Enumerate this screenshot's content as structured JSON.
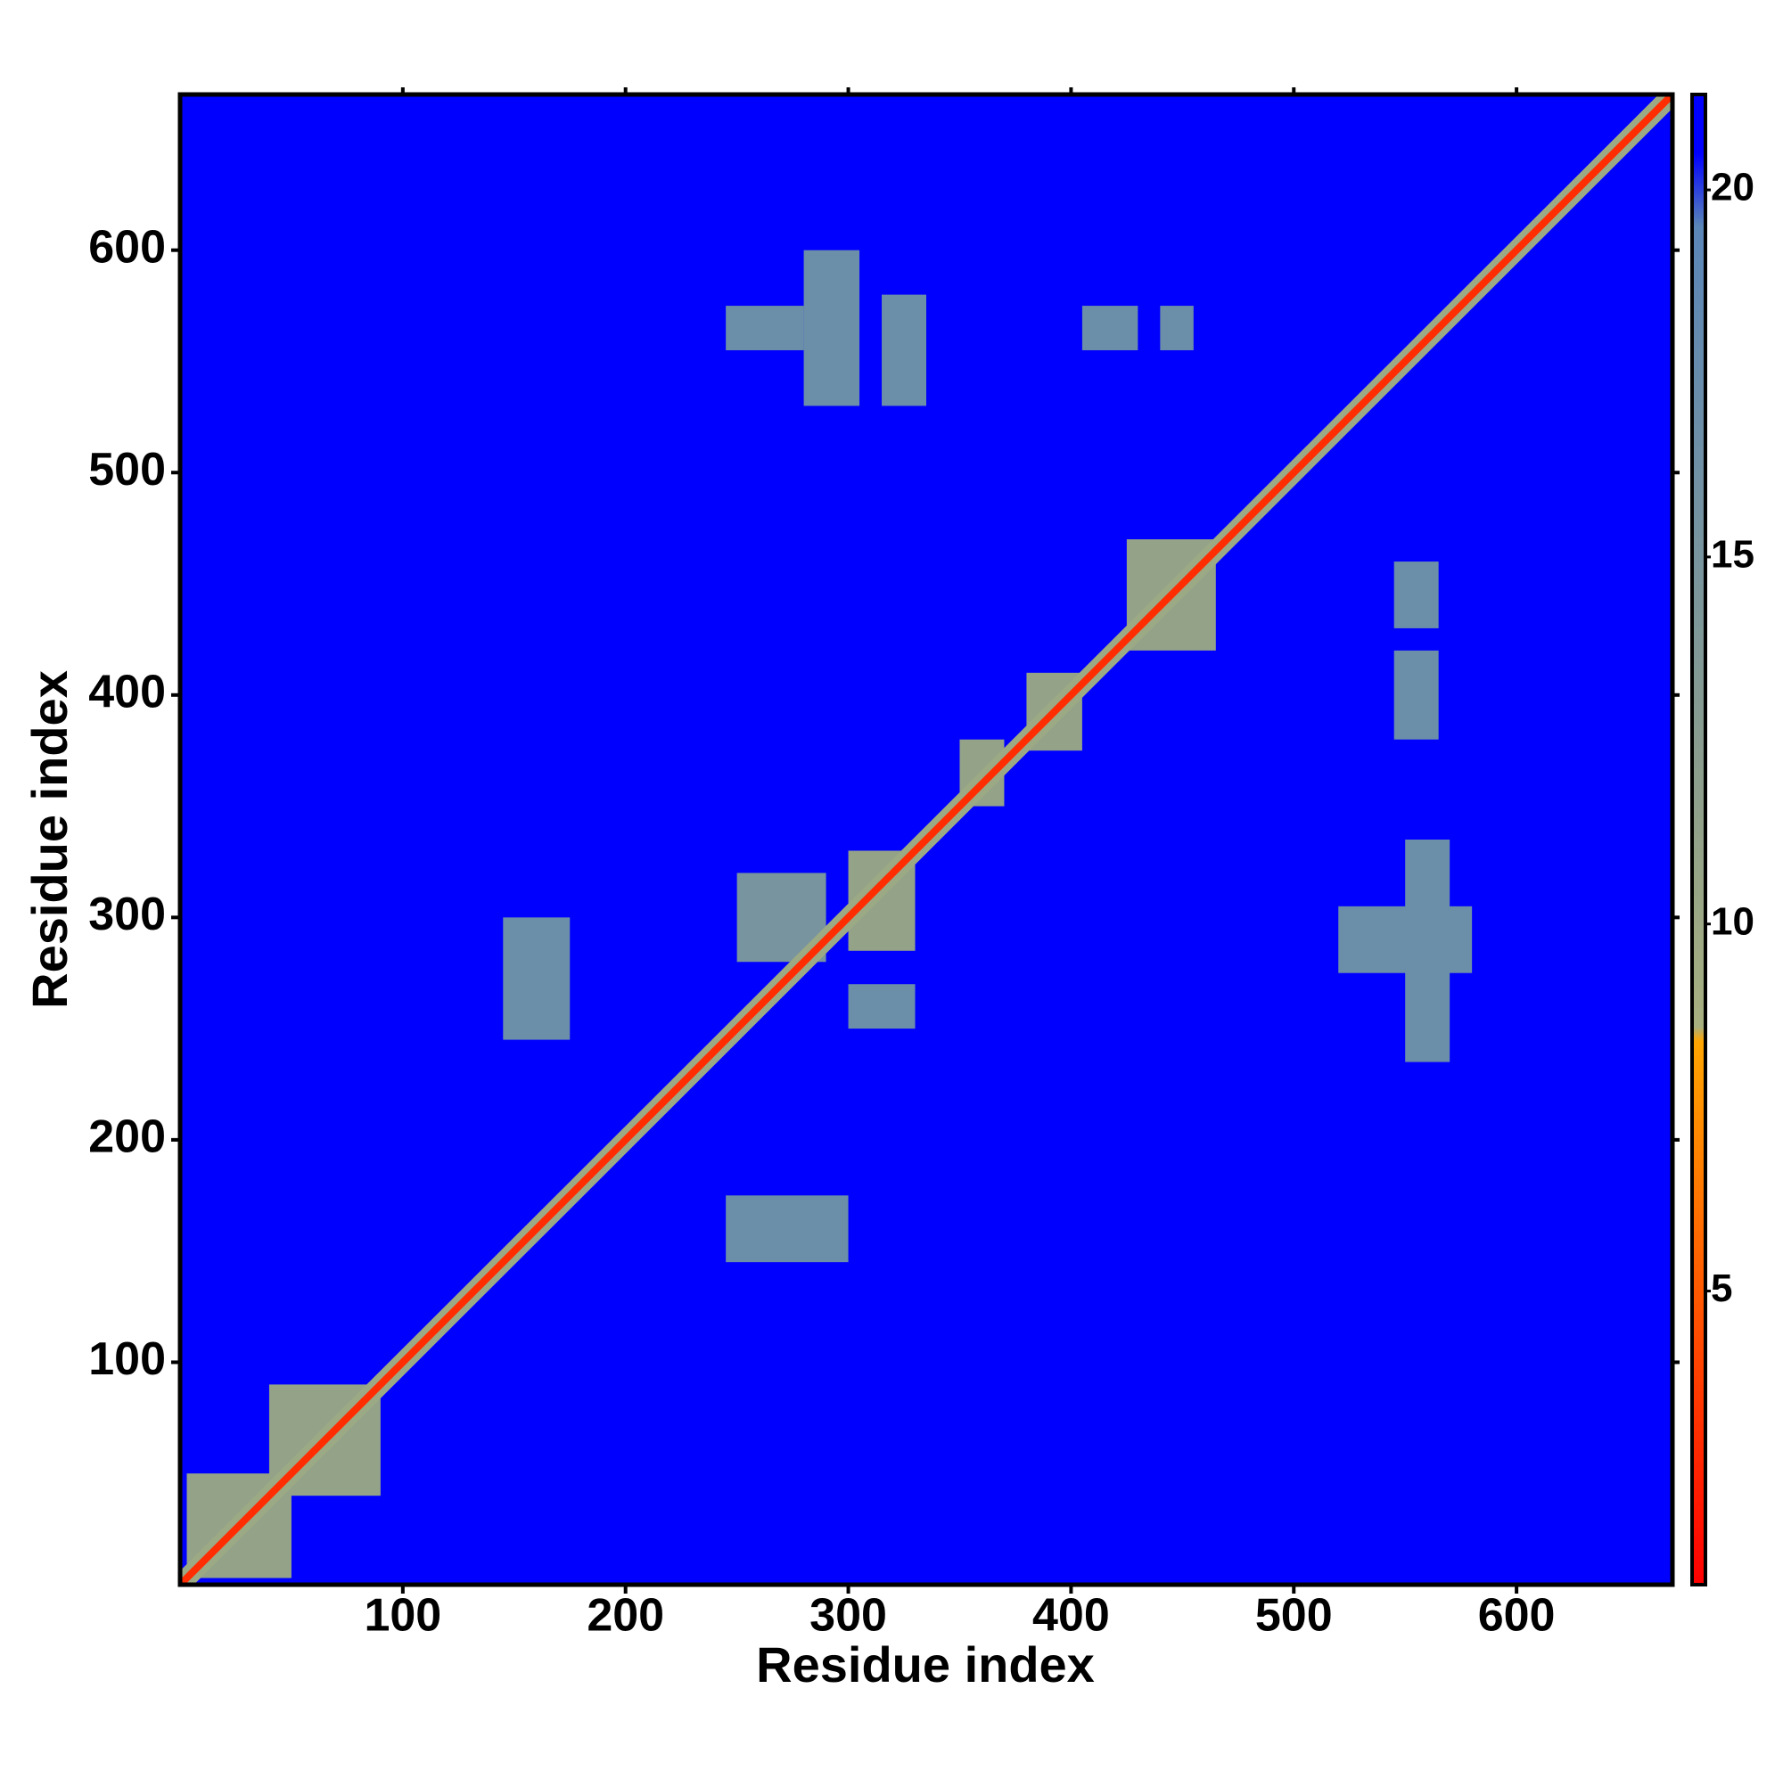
{
  "chart_data": {
    "type": "heatmap",
    "x_label": "Residue index",
    "y_label": "Residue index",
    "xlim": [
      0,
      670
    ],
    "ylim": [
      0,
      670
    ],
    "xticks": [
      100,
      200,
      300,
      400,
      500,
      600
    ],
    "yticks": [
      100,
      200,
      300,
      400,
      500,
      600
    ],
    "clim": [
      1,
      21.3
    ],
    "cticks": [
      5,
      10,
      15,
      20
    ],
    "colorscale": [
      [
        1,
        "#ff0000"
      ],
      [
        8.4,
        "#ffa500"
      ],
      [
        8.6,
        "#a8b080"
      ],
      [
        12,
        "#8c9e8c"
      ],
      [
        19.5,
        "#5b86b8"
      ],
      [
        20.5,
        "#0000ff"
      ],
      [
        21.3,
        "#0000ff"
      ]
    ],
    "background_value": 21,
    "diagonal": {
      "value": 3,
      "halo_value": 10
    },
    "regions": [
      {
        "x": [
          280,
          305
        ],
        "y": [
          530,
          600
        ],
        "value": 17
      },
      {
        "x": [
          245,
          280
        ],
        "y": [
          555,
          575
        ],
        "value": 17
      },
      {
        "x": [
          315,
          335
        ],
        "y": [
          530,
          580
        ],
        "value": 17
      },
      {
        "x": [
          405,
          430
        ],
        "y": [
          555,
          575
        ],
        "value": 17
      },
      {
        "x": [
          440,
          455
        ],
        "y": [
          555,
          575
        ],
        "value": 17
      },
      {
        "x": [
          425,
          465
        ],
        "y": [
          420,
          470
        ],
        "value": 11
      },
      {
        "x": [
          300,
          330
        ],
        "y": [
          285,
          330
        ],
        "value": 11
      },
      {
        "x": [
          250,
          290
        ],
        "y": [
          280,
          320
        ],
        "value": 15
      },
      {
        "x": [
          520,
          580
        ],
        "y": [
          275,
          305
        ],
        "value": 17
      },
      {
        "x": [
          550,
          570
        ],
        "y": [
          235,
          335
        ],
        "value": 17
      },
      {
        "x": [
          545,
          565
        ],
        "y": [
          380,
          420
        ],
        "value": 17
      },
      {
        "x": [
          545,
          565
        ],
        "y": [
          430,
          460
        ],
        "value": 17
      },
      {
        "x": [
          145,
          175
        ],
        "y": [
          245,
          300
        ],
        "value": 17
      },
      {
        "x": [
          245,
          300
        ],
        "y": [
          145,
          175
        ],
        "value": 17
      },
      {
        "x": [
          300,
          330
        ],
        "y": [
          250,
          270
        ],
        "value": 17
      },
      {
        "x": [
          3,
          50
        ],
        "y": [
          3,
          50
        ],
        "value": 11
      },
      {
        "x": [
          40,
          90
        ],
        "y": [
          40,
          90
        ],
        "value": 11
      },
      {
        "x": [
          380,
          405
        ],
        "y": [
          375,
          410
        ],
        "value": 11
      },
      {
        "x": [
          350,
          370
        ],
        "y": [
          350,
          380
        ],
        "value": 11
      }
    ]
  }
}
